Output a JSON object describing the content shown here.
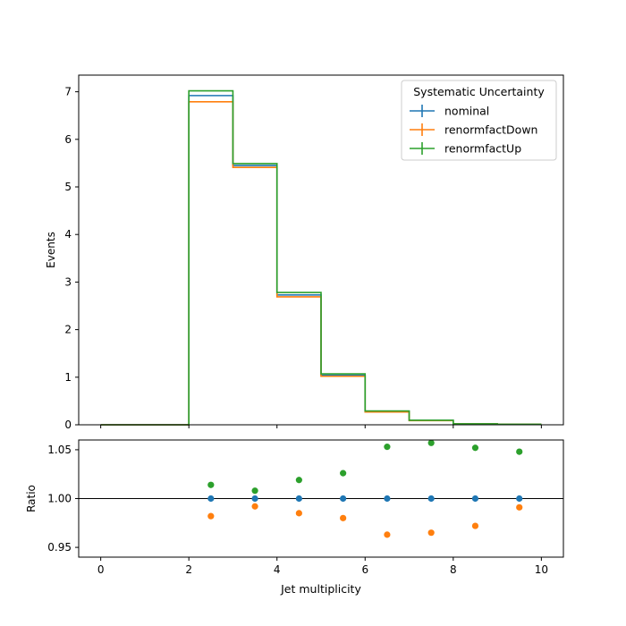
{
  "chart_data": [
    {
      "type": "line",
      "subtype": "step-histogram",
      "xlabel": "",
      "ylabel": "Events",
      "xlim": [
        -0.5,
        10.5
      ],
      "ylim": [
        0,
        7.35
      ],
      "xticks": [
        0,
        2,
        4,
        6,
        8,
        10
      ],
      "yticks": [
        0,
        1,
        2,
        3,
        4,
        5,
        6,
        7
      ],
      "bin_edges": [
        0,
        1,
        2,
        3,
        4,
        5,
        6,
        7,
        8,
        9,
        10
      ],
      "legend": {
        "title": "Systematic Uncertainty",
        "placement": "top-right"
      },
      "series": [
        {
          "name": "nominal",
          "color": "#1f77b4",
          "values": [
            0,
            0,
            6.92,
            5.45,
            2.73,
            1.04,
            0.28,
            0.09,
            0.02,
            0.01
          ]
        },
        {
          "name": "renormfactDown",
          "color": "#ff7f0e",
          "values": [
            0,
            0,
            6.79,
            5.41,
            2.69,
            1.02,
            0.27,
            0.087,
            0.0195,
            0.0099
          ]
        },
        {
          "name": "renormfactUp",
          "color": "#2ca02c",
          "values": [
            0,
            0,
            7.02,
            5.49,
            2.78,
            1.07,
            0.29,
            0.095,
            0.021,
            0.0105
          ]
        }
      ]
    },
    {
      "type": "scatter",
      "xlabel": "Jet multiplicity",
      "ylabel": "Ratio",
      "xlim": [
        -0.5,
        10.5
      ],
      "ylim": [
        0.94,
        1.06
      ],
      "xticks": [
        0,
        2,
        4,
        6,
        8,
        10
      ],
      "yticks": [
        0.95,
        1.0,
        1.05
      ],
      "reference_line": 1.0,
      "x": [
        2.5,
        3.5,
        4.5,
        5.5,
        6.5,
        7.5,
        8.5,
        9.5
      ],
      "series": [
        {
          "name": "nominal",
          "color": "#1f77b4",
          "values": [
            1.0,
            1.0,
            1.0,
            1.0,
            1.0,
            1.0,
            1.0,
            1.0
          ]
        },
        {
          "name": "renormfactDown",
          "color": "#ff7f0e",
          "values": [
            0.982,
            0.992,
            0.985,
            0.98,
            0.963,
            0.965,
            0.972,
            0.991
          ]
        },
        {
          "name": "renormfactUp",
          "color": "#2ca02c",
          "values": [
            1.014,
            1.008,
            1.019,
            1.026,
            1.053,
            1.057,
            1.052,
            1.048
          ]
        }
      ]
    }
  ]
}
